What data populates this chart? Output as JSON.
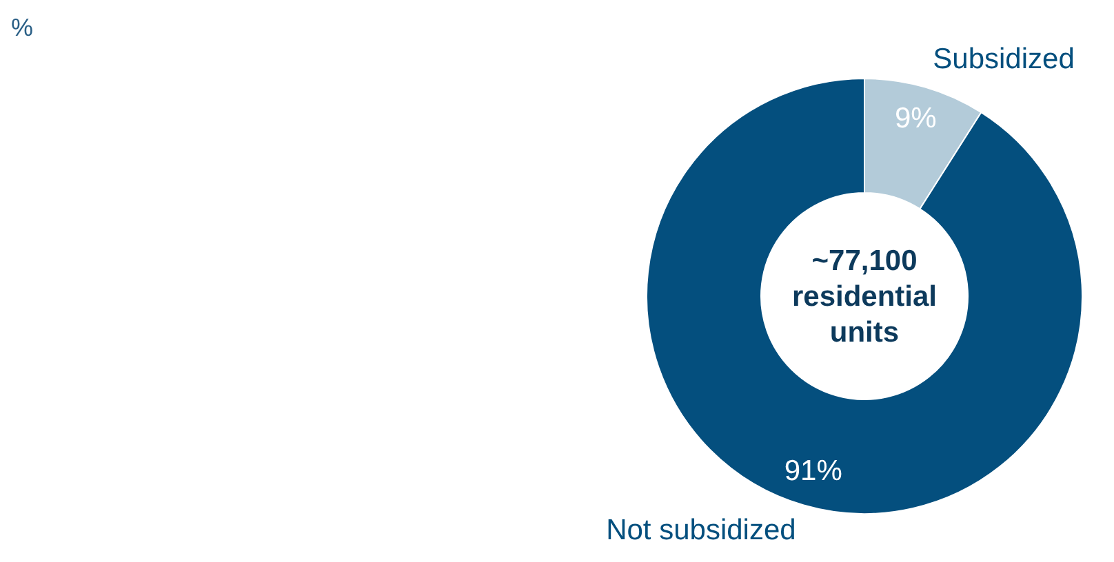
{
  "chart_data": {
    "type": "donut",
    "categories": [
      "Subsidized",
      "Not subsidized"
    ],
    "values": [
      9,
      91
    ],
    "colors": [
      "#b3cbd9",
      "#044f7e"
    ],
    "value_labels": [
      "9%",
      "91%"
    ],
    "annotations": [
      "%",
      "~77,100 residential units"
    ]
  }
}
